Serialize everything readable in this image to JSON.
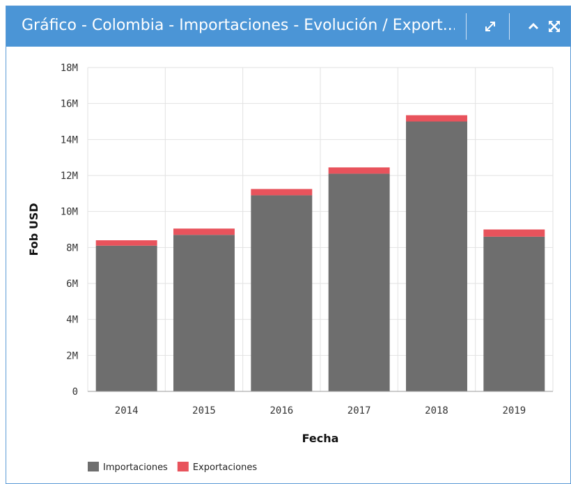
{
  "panel": {
    "title": "Gráfico - Colombia - Importaciones - Evolución / Export...",
    "header_color": "#4b95d6",
    "icons": [
      "expand-icon",
      "collapse-icon",
      "fullscreen-icon"
    ]
  },
  "chart_data": {
    "type": "bar",
    "stacked": true,
    "categories": [
      "2014",
      "2015",
      "2016",
      "2017",
      "2018",
      "2019"
    ],
    "series": [
      {
        "name": "Importaciones",
        "color": "#6e6e6e",
        "values": [
          8100000,
          8700000,
          10900000,
          12100000,
          15000000,
          8600000
        ]
      },
      {
        "name": "Exportaciones",
        "color": "#e8535c",
        "values": [
          300000,
          350000,
          350000,
          350000,
          350000,
          400000
        ]
      }
    ],
    "xlabel": "Fecha",
    "ylabel": "Fob USD",
    "ylim": [
      0,
      18000000
    ],
    "yticks": [
      {
        "value": 0,
        "label": "0"
      },
      {
        "value": 2000000,
        "label": "2M"
      },
      {
        "value": 4000000,
        "label": "4M"
      },
      {
        "value": 6000000,
        "label": "6M"
      },
      {
        "value": 8000000,
        "label": "8M"
      },
      {
        "value": 10000000,
        "label": "10M"
      },
      {
        "value": 12000000,
        "label": "12M"
      },
      {
        "value": 14000000,
        "label": "14M"
      },
      {
        "value": 16000000,
        "label": "16M"
      },
      {
        "value": 18000000,
        "label": "18M"
      }
    ],
    "grid": true,
    "legend_position": "bottom-left"
  }
}
